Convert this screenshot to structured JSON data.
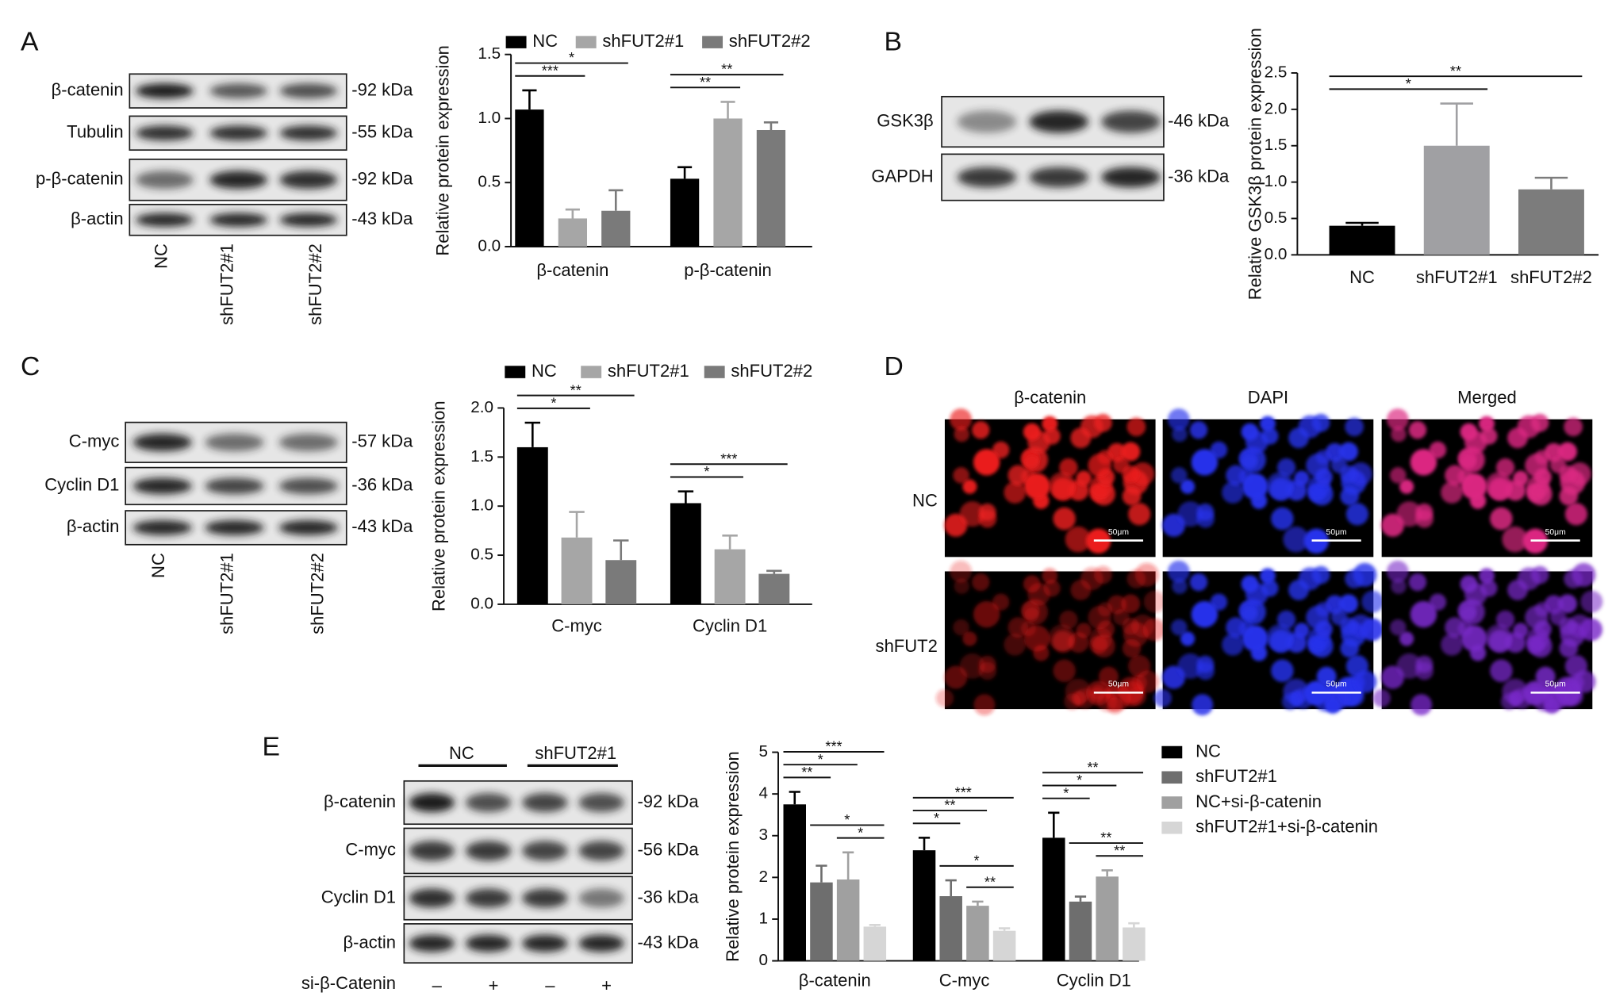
{
  "panel_labels": [
    "A",
    "B",
    "C",
    "D",
    "E"
  ],
  "blots": [
    {
      "rows": [
        {
          "label": "β-catenin",
          "size": "-92 kDa"
        },
        {
          "label": "Tubulin",
          "size": "-55 kDa"
        },
        {
          "label": "p-β-catenin",
          "size": "-92 kDa"
        },
        {
          "label": "β-actin",
          "size": "-43 kDa"
        }
      ],
      "lanes": [
        "NC",
        "shFUT2#1",
        "shFUT2#2"
      ]
    },
    {
      "rows": [
        {
          "label": "GSK3β",
          "size": "-46 kDa"
        },
        {
          "label": "GAPDH",
          "size": "-36 kDa"
        }
      ]
    },
    {
      "rows": [
        {
          "label": "C-myc",
          "size": "-57 kDa"
        },
        {
          "label": "Cyclin D1",
          "size": "-36 kDa"
        },
        {
          "label": "β-actin",
          "size": "-43 kDa"
        }
      ],
      "lanes": [
        "NC",
        "shFUT2#1",
        "shFUT2#2"
      ]
    },
    {
      "groups": [
        "NC",
        "shFUT2#1"
      ],
      "rows": [
        {
          "label": "β-catenin",
          "size": "-92 kDa"
        },
        {
          "label": "C-myc",
          "size": "-56 kDa"
        },
        {
          "label": "Cyclin D1",
          "size": "-36 kDa"
        },
        {
          "label": "β-actin",
          "size": "-43 kDa"
        }
      ],
      "treatment": {
        "label": "si-β-Catenin",
        "lanes": [
          "–",
          "+",
          "–",
          "+"
        ]
      }
    }
  ],
  "microscopy": {
    "columns": [
      "β-catenin",
      "DAPI",
      "Merged"
    ],
    "rows": [
      "NC",
      "shFUT2"
    ],
    "scale_bar": "50μm"
  },
  "chart_data": [
    {
      "type": "bar",
      "y_label": "Relative protein expression",
      "categories": [
        "β-catenin",
        "p-β-catenin"
      ],
      "series": [
        {
          "name": "NC",
          "color": "#000000",
          "values": [
            1.07,
            0.53
          ],
          "errors": [
            0.15,
            0.09
          ]
        },
        {
          "name": "shFUT2#1",
          "color": "#a6a6a6",
          "values": [
            0.22,
            1.0
          ],
          "errors": [
            0.07,
            0.13
          ]
        },
        {
          "name": "shFUT2#2",
          "color": "#7a7a7a",
          "values": [
            0.28,
            0.91
          ],
          "errors": [
            0.16,
            0.06
          ]
        }
      ],
      "ylim": [
        0,
        1.5
      ],
      "yticks": [
        {
          "value": 0,
          "label": "0.0"
        },
        0.5,
        {
          "value": 1,
          "label": "1.0"
        },
        1.5
      ],
      "annotations": [
        {
          "group": 0,
          "bars": [
            0,
            1
          ],
          "text": "***"
        },
        {
          "group": 0,
          "bars": [
            0,
            2
          ],
          "text": "*"
        },
        {
          "group": 1,
          "bars": [
            0,
            1
          ],
          "text": "**"
        },
        {
          "group": 1,
          "bars": [
            0,
            2
          ],
          "text": "**"
        }
      ]
    },
    {
      "type": "bar",
      "y_label": "Relative GSK3β protein expression",
      "categories": [
        "NC",
        "shFUT2#1",
        "shFUT2#2"
      ],
      "values": [
        0.4,
        1.5,
        0.9
      ],
      "errors": [
        0.04,
        0.58,
        0.16
      ],
      "colors": [
        "#000000",
        "#a0a0a3",
        "#7c7c7c"
      ],
      "ylim": [
        0,
        2.5
      ],
      "yticks": [
        {
          "value": 0,
          "label": "0.0"
        },
        0.5,
        {
          "value": 1,
          "label": "1.0"
        },
        1.5,
        {
          "value": 2,
          "label": "2.0"
        },
        2.5
      ],
      "annotations": [
        {
          "bars": [
            0,
            1
          ],
          "text": "*"
        },
        {
          "bars": [
            0,
            2
          ],
          "text": "**"
        }
      ]
    },
    {
      "type": "bar",
      "y_label": "Relative protein expression",
      "categories": [
        "C-myc",
        "Cyclin D1"
      ],
      "series": [
        {
          "name": "NC",
          "color": "#000000",
          "values": [
            1.6,
            1.03
          ],
          "errors": [
            0.25,
            0.12
          ]
        },
        {
          "name": "shFUT2#1",
          "color": "#a6a6a6",
          "values": [
            0.68,
            0.56
          ],
          "errors": [
            0.26,
            0.14
          ]
        },
        {
          "name": "shFUT2#2",
          "color": "#7a7a7a",
          "values": [
            0.45,
            0.31
          ],
          "errors": [
            0.2,
            0.03
          ]
        }
      ],
      "ylim": [
        0,
        2
      ],
      "yticks": [
        {
          "value": 0,
          "label": "0.0"
        },
        0.5,
        {
          "value": 1,
          "label": "1.0"
        },
        1.5,
        {
          "value": 2,
          "label": "2.0"
        }
      ],
      "annotations": [
        {
          "group": 0,
          "bars": [
            0,
            1
          ],
          "text": "*"
        },
        {
          "group": 0,
          "bars": [
            0,
            2
          ],
          "text": "**"
        },
        {
          "group": 1,
          "bars": [
            0,
            1
          ],
          "text": "*"
        },
        {
          "group": 1,
          "bars": [
            0,
            2
          ],
          "text": "***"
        }
      ]
    },
    {
      "type": "bar",
      "y_label": "Relative protein expression",
      "categories": [
        "β-catenin",
        "C-myc",
        "Cyclin D1"
      ],
      "series": [
        {
          "name": "NC",
          "color": "#000000",
          "values": [
            3.75,
            2.65,
            2.95
          ],
          "errors": [
            0.3,
            0.3,
            0.6
          ]
        },
        {
          "name": "shFUT2#1",
          "color": "#6e6e6e",
          "values": [
            1.88,
            1.55,
            1.42
          ],
          "errors": [
            0.4,
            0.38,
            0.12
          ]
        },
        {
          "name": "NC+si-β-catenin",
          "color": "#a0a0a0",
          "values": [
            1.95,
            1.32,
            2.02
          ],
          "errors": [
            0.65,
            0.1,
            0.15
          ]
        },
        {
          "name": "shFUT2#1+si-β-catenin",
          "color": "#d6d6d6",
          "values": [
            0.82,
            0.72,
            0.8
          ],
          "errors": [
            0.04,
            0.06,
            0.1
          ]
        }
      ],
      "ylim": [
        0,
        5
      ],
      "yticks": [
        0,
        1,
        2,
        3,
        4,
        5
      ],
      "annotations": [
        {
          "group": 0,
          "bars": [
            2,
            3
          ],
          "text": "*"
        },
        {
          "group": 0,
          "bars": [
            1,
            3
          ],
          "text": "*"
        },
        {
          "group": 0,
          "bars": [
            0,
            1
          ],
          "text": "**"
        },
        {
          "group": 0,
          "bars": [
            0,
            2
          ],
          "text": "*"
        },
        {
          "group": 0,
          "bars": [
            0,
            3
          ],
          "text": "***"
        },
        {
          "group": 1,
          "bars": [
            2,
            3
          ],
          "text": "**"
        },
        {
          "group": 1,
          "bars": [
            1,
            3
          ],
          "text": "*"
        },
        {
          "group": 1,
          "bars": [
            0,
            1
          ],
          "text": "*"
        },
        {
          "group": 1,
          "bars": [
            0,
            2
          ],
          "text": "**"
        },
        {
          "group": 1,
          "bars": [
            0,
            3
          ],
          "text": "***"
        },
        {
          "group": 2,
          "bars": [
            2,
            3
          ],
          "text": "**"
        },
        {
          "group": 2,
          "bars": [
            1,
            3
          ],
          "text": "**"
        },
        {
          "group": 2,
          "bars": [
            0,
            1
          ],
          "text": "*"
        },
        {
          "group": 2,
          "bars": [
            0,
            2
          ],
          "text": "*"
        },
        {
          "group": 2,
          "bars": [
            0,
            3
          ],
          "text": "**"
        }
      ]
    }
  ]
}
